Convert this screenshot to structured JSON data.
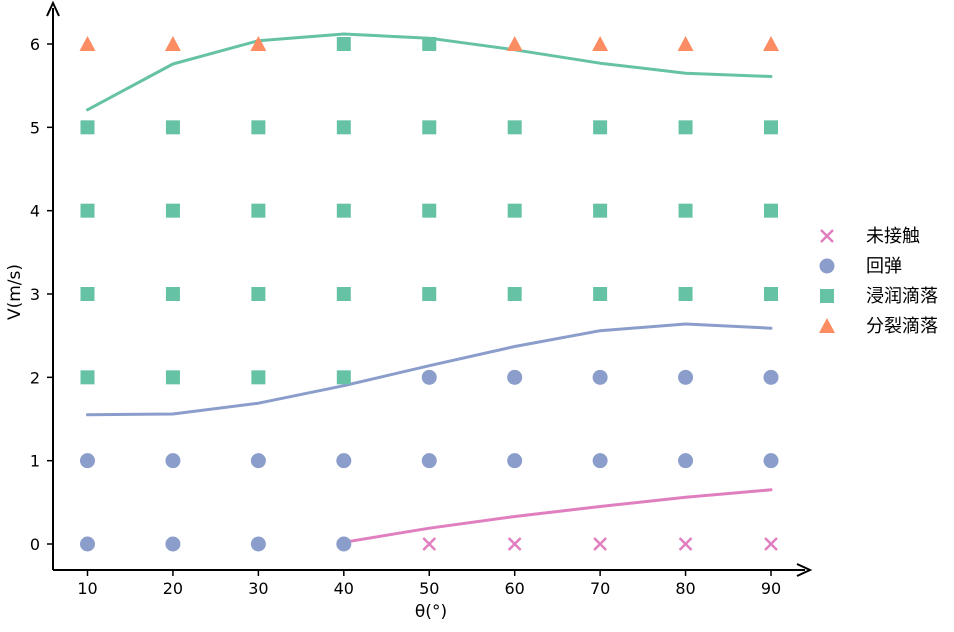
{
  "chart_data": {
    "type": "scatter",
    "title": "",
    "xlabel": "θ(°)",
    "ylabel": "V(m/s)",
    "x_ticks": [
      10,
      20,
      30,
      40,
      50,
      60,
      70,
      80,
      90
    ],
    "y_ticks": [
      0,
      1,
      2,
      3,
      4,
      5,
      6
    ],
    "xlim": [
      6,
      96
    ],
    "ylim": [
      -0.3,
      6.5
    ],
    "grid": false,
    "legend_position": "right",
    "series": [
      {
        "name": "未接触",
        "marker": "x",
        "color": "#e07fbf",
        "points": [
          [
            50,
            0
          ],
          [
            60,
            0
          ],
          [
            70,
            0
          ],
          [
            80,
            0
          ],
          [
            90,
            0
          ]
        ]
      },
      {
        "name": "回弹",
        "marker": "circle",
        "color": "#8b9dca",
        "points": [
          [
            10,
            0
          ],
          [
            20,
            0
          ],
          [
            30,
            0
          ],
          [
            40,
            0
          ],
          [
            10,
            1
          ],
          [
            20,
            1
          ],
          [
            30,
            1
          ],
          [
            40,
            1
          ],
          [
            50,
            1
          ],
          [
            60,
            1
          ],
          [
            70,
            1
          ],
          [
            80,
            1
          ],
          [
            90,
            1
          ],
          [
            50,
            2
          ],
          [
            60,
            2
          ],
          [
            70,
            2
          ],
          [
            80,
            2
          ],
          [
            90,
            2
          ]
        ]
      },
      {
        "name": "浸润滴落",
        "marker": "square",
        "color": "#66c2a5",
        "points": [
          [
            10,
            2
          ],
          [
            20,
            2
          ],
          [
            30,
            2
          ],
          [
            40,
            2
          ],
          [
            10,
            3
          ],
          [
            20,
            3
          ],
          [
            30,
            3
          ],
          [
            40,
            3
          ],
          [
            50,
            3
          ],
          [
            60,
            3
          ],
          [
            70,
            3
          ],
          [
            80,
            3
          ],
          [
            90,
            3
          ],
          [
            10,
            4
          ],
          [
            20,
            4
          ],
          [
            30,
            4
          ],
          [
            40,
            4
          ],
          [
            50,
            4
          ],
          [
            60,
            4
          ],
          [
            70,
            4
          ],
          [
            80,
            4
          ],
          [
            90,
            4
          ],
          [
            10,
            5
          ],
          [
            20,
            5
          ],
          [
            30,
            5
          ],
          [
            40,
            5
          ],
          [
            50,
            5
          ],
          [
            60,
            5
          ],
          [
            70,
            5
          ],
          [
            80,
            5
          ],
          [
            90,
            5
          ],
          [
            40,
            6
          ],
          [
            50,
            6
          ]
        ]
      },
      {
        "name": "分裂滴落",
        "marker": "triangle",
        "color": "#fc8d62",
        "points": [
          [
            10,
            6
          ],
          [
            20,
            6
          ],
          [
            30,
            6
          ],
          [
            60,
            6
          ],
          [
            70,
            6
          ],
          [
            80,
            6
          ],
          [
            90,
            6
          ]
        ]
      }
    ],
    "curves": [
      {
        "color": "#e07fbf",
        "x": [
          40,
          50,
          60,
          70,
          80,
          90
        ],
        "y": [
          0.02,
          0.19,
          0.33,
          0.45,
          0.56,
          0.65
        ]
      },
      {
        "color": "#8b9dca",
        "x": [
          10,
          20,
          30,
          40,
          50,
          60,
          70,
          80,
          90
        ],
        "y": [
          1.55,
          1.56,
          1.69,
          1.9,
          2.14,
          2.37,
          2.56,
          2.64,
          2.59
        ]
      },
      {
        "color": "#66c2a5",
        "x": [
          10,
          20,
          30,
          40,
          50,
          60,
          70,
          80,
          90
        ],
        "y": [
          5.21,
          5.76,
          6.04,
          6.12,
          6.07,
          5.93,
          5.77,
          5.65,
          5.61
        ]
      }
    ]
  }
}
